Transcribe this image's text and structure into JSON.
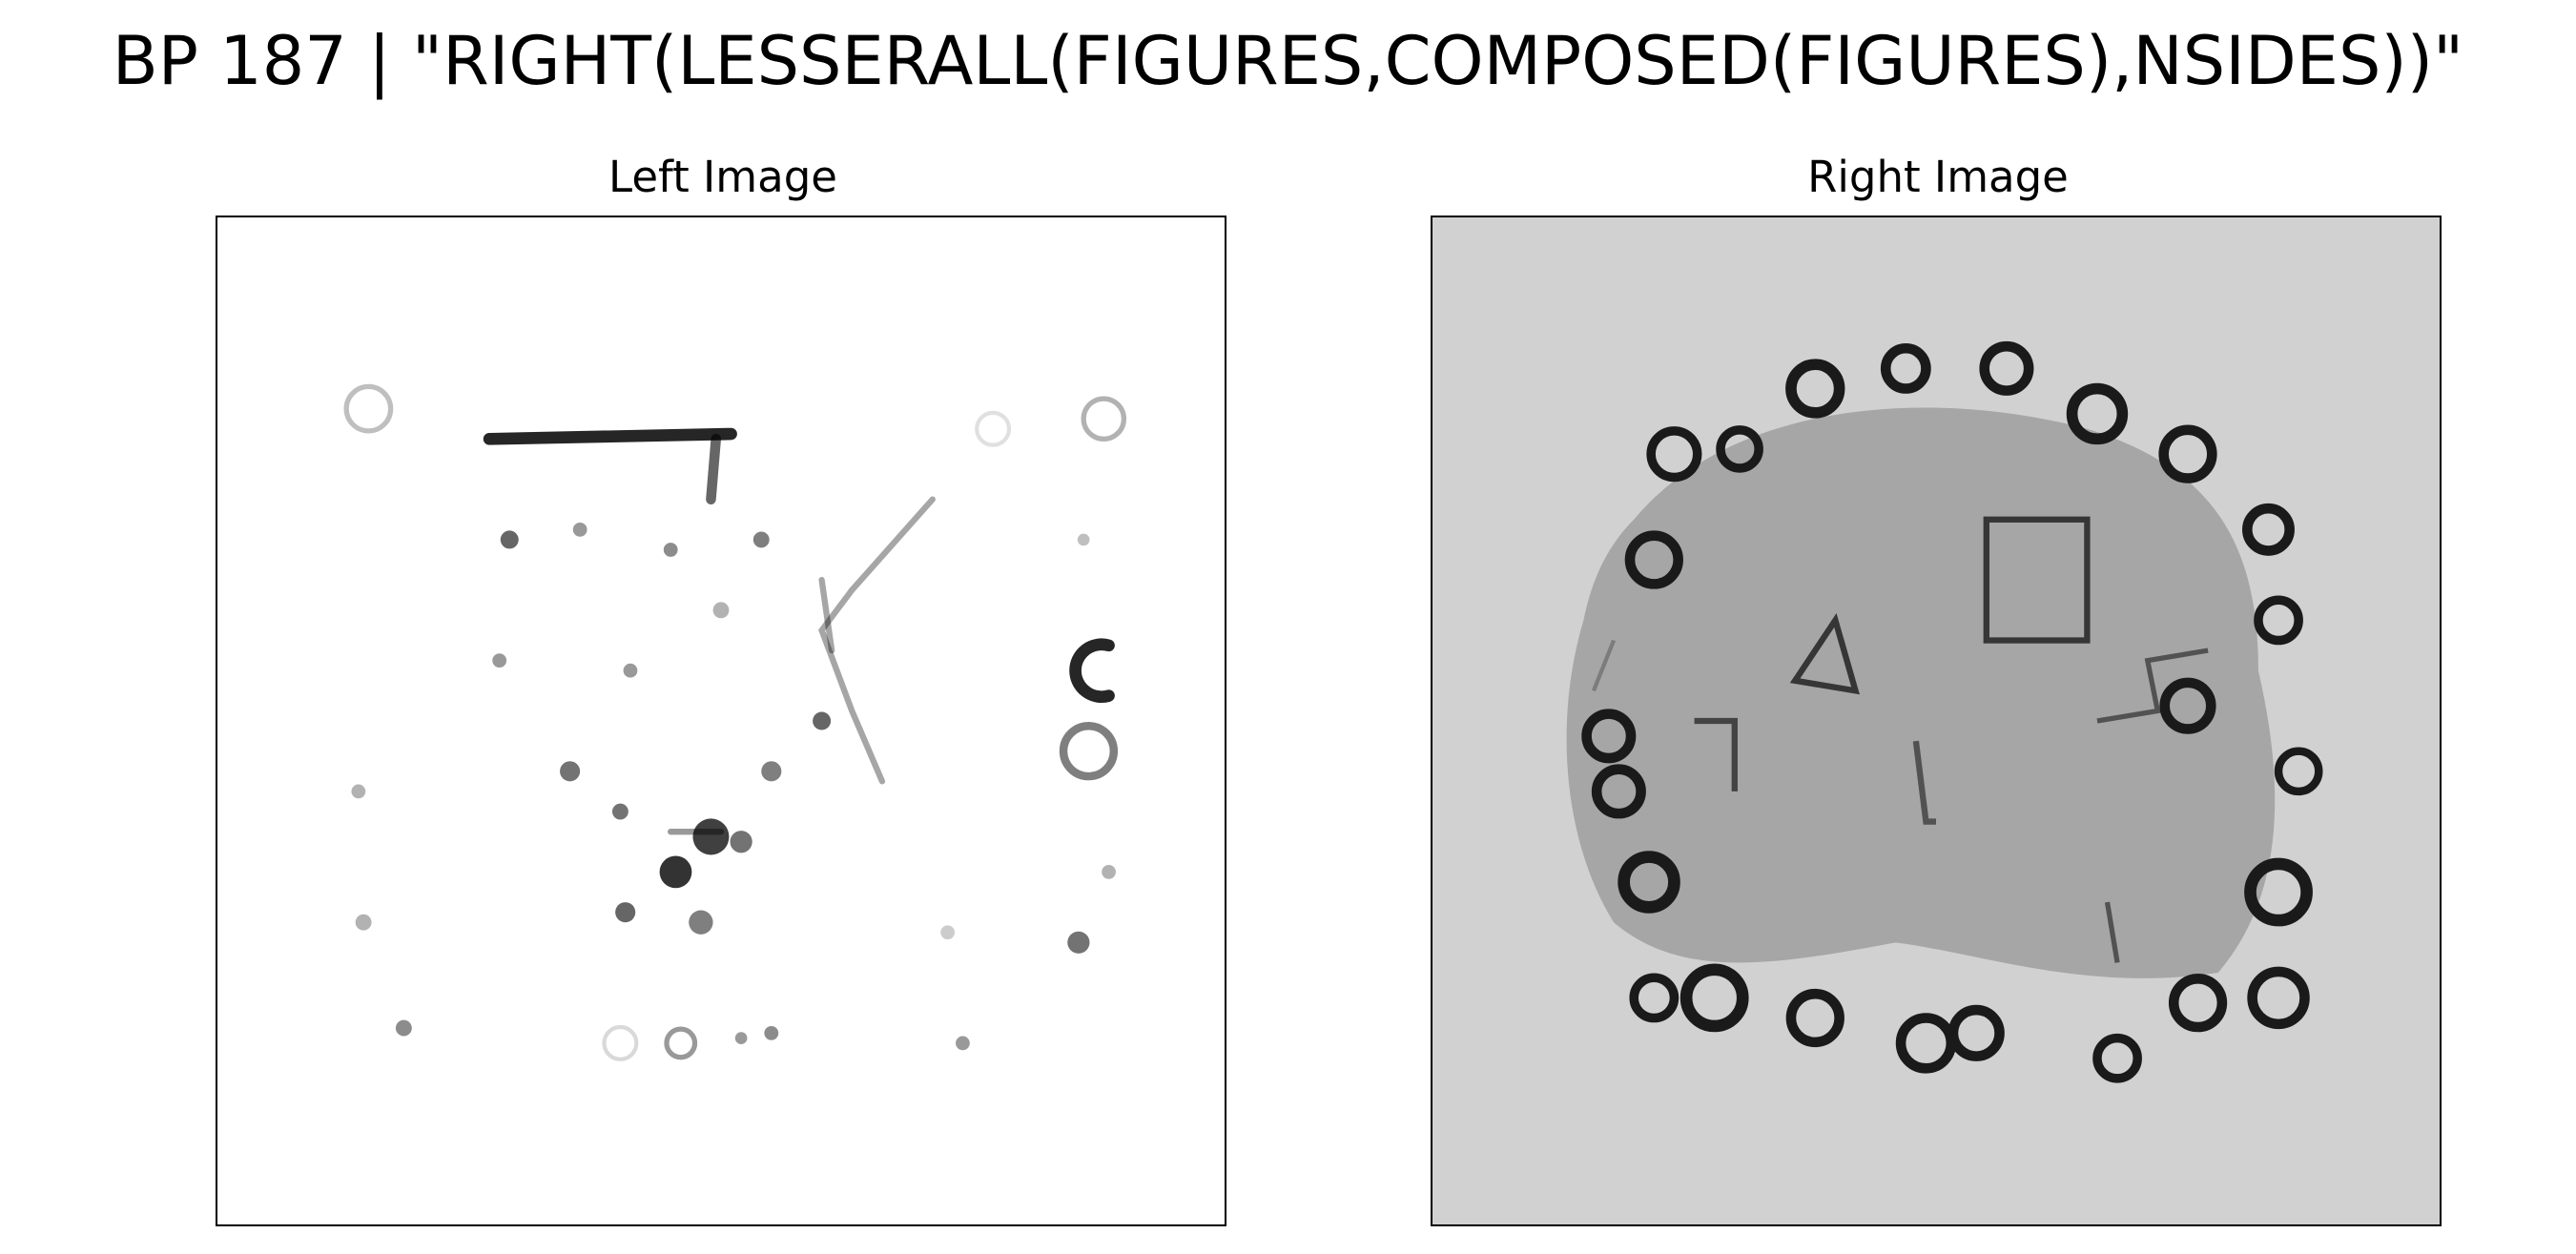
{
  "figure": {
    "title": "BP 187 | \"RIGHT(LESSERALL(FIGURES,COMPOSED(FIGURES),NSIDES))\""
  },
  "panels": {
    "left": {
      "title": "Left Image",
      "background": "#ffffff"
    },
    "right": {
      "title": "Right Image",
      "background": "#d1d1d1",
      "blob_color": "#a6a6a6"
    }
  },
  "colors": {
    "ink": "#000000",
    "frame": "#000000"
  }
}
